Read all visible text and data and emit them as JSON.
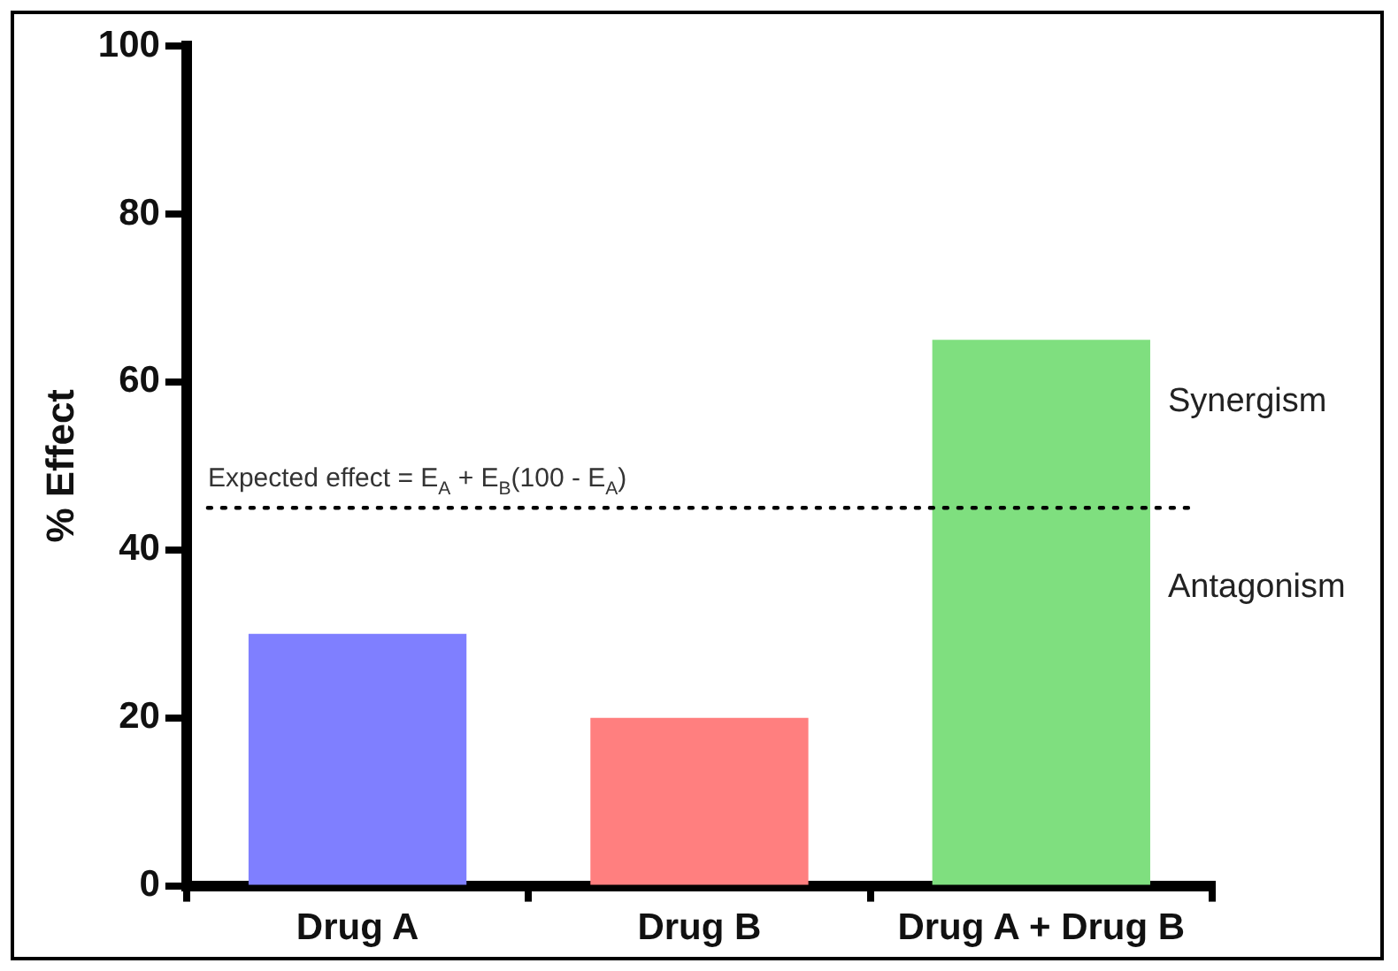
{
  "chart_data": {
    "type": "bar",
    "ylabel": "% Effect",
    "categories": [
      "Drug A",
      "Drug B",
      "Drug A + Drug B"
    ],
    "values": [
      30,
      20,
      65
    ],
    "colors": [
      "#7f7fff",
      "#ff7f7f",
      "#7fdf7f"
    ],
    "ylim": [
      0,
      100
    ],
    "yticks": [
      0,
      20,
      40,
      60,
      80,
      100
    ],
    "grid": false,
    "legend": false,
    "ref_lines": [
      {
        "axis": "y",
        "value": 45,
        "label": "Expected effect = E$_{A}$ + E$_{B}$(100 - E$_{A}$)",
        "line_style": "dotted",
        "color": "#000000"
      }
    ],
    "annotations": [
      "Synergism",
      "Antagonism"
    ]
  }
}
